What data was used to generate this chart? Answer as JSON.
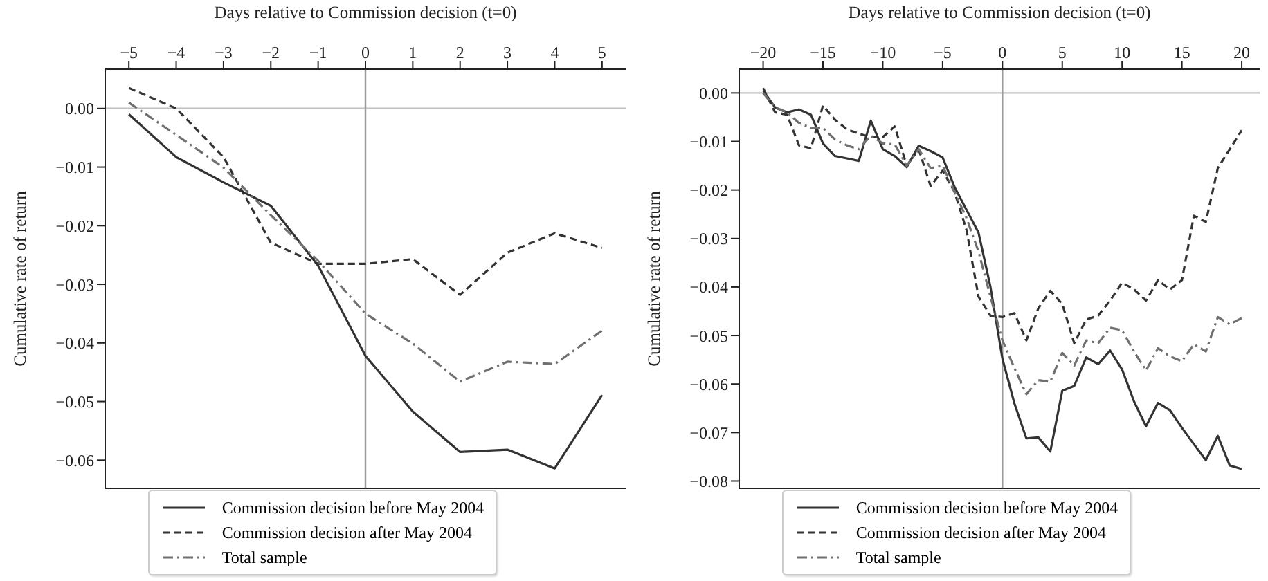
{
  "chart_data": [
    {
      "type": "line",
      "xlabel": "Days relative to Commission decision (t=0)",
      "ylabel": "Cumulative rate of return",
      "x": [
        -5,
        -4,
        -3,
        -2,
        -1,
        0,
        1,
        2,
        3,
        4,
        5
      ],
      "series": [
        {
          "name": "Commission decision before May 2004",
          "color": "#333333",
          "line_style": "solid",
          "values": [
            -0.001,
            -0.0083,
            -0.0126,
            -0.0166,
            -0.0268,
            -0.0422,
            -0.0517,
            -0.0586,
            -0.0582,
            -0.0614,
            -0.0489
          ]
        },
        {
          "name": "Commission decision after May 2004",
          "color": "#333333",
          "line_style": "dashed",
          "values": [
            0.0035,
            0.0,
            -0.0083,
            -0.0229,
            -0.0265,
            -0.0265,
            -0.0257,
            -0.0318,
            -0.0246,
            -0.0213,
            -0.0238
          ]
        },
        {
          "name": "Total sample",
          "color": "#707070",
          "line_style": "dashdot",
          "values": [
            0.001,
            -0.0045,
            -0.0101,
            -0.0182,
            -0.026,
            -0.035,
            -0.0401,
            -0.0466,
            -0.0432,
            -0.0436,
            -0.0379
          ]
        }
      ],
      "xlim": [
        -5.5,
        5.5
      ],
      "xticks": [
        {
          "value": -5,
          "label": "−5"
        },
        {
          "value": -4,
          "label": "−4"
        },
        {
          "value": -3,
          "label": "−3"
        },
        {
          "value": -2,
          "label": "−2"
        },
        {
          "value": -1,
          "label": "−1"
        },
        0,
        1,
        2,
        3,
        4,
        5
      ],
      "ylim": [
        -0.0648,
        0.0067
      ],
      "yticks": [
        {
          "value": 0,
          "label": "0.00"
        },
        {
          "value": -0.01,
          "label": "−0.01"
        },
        {
          "value": -0.02,
          "label": "−0.02"
        },
        {
          "value": -0.03,
          "label": "−0.03"
        },
        {
          "value": -0.04,
          "label": "−0.04"
        },
        {
          "value": -0.05,
          "label": "−0.05"
        },
        {
          "value": -0.06,
          "label": "−0.06"
        }
      ],
      "ref_lines": [
        {
          "axis": "y",
          "value": 0,
          "color": "#c0c0c0"
        },
        {
          "axis": "x",
          "value": 0,
          "color": "#999999"
        }
      ],
      "grid": false,
      "legend": "bottom"
    },
    {
      "type": "line",
      "xlabel": "Days relative to Commission decision (t=0)",
      "ylabel": "Cumulative rate of return",
      "x": [
        -20,
        -19,
        -18,
        -17,
        -16,
        -15,
        -14,
        -13,
        -12,
        -11,
        -10,
        -9,
        -8,
        -7,
        -6,
        -5,
        -4,
        -3,
        -2,
        -1,
        0,
        1,
        2,
        3,
        4,
        5,
        6,
        7,
        8,
        9,
        10,
        11,
        12,
        13,
        14,
        15,
        16,
        17,
        18,
        19,
        20
      ],
      "series": [
        {
          "name": "Commission decision before May 2004",
          "color": "#333333",
          "line_style": "solid",
          "values": [
            0.0005,
            -0.003,
            -0.004,
            -0.0034,
            -0.0045,
            -0.0104,
            -0.013,
            -0.0135,
            -0.014,
            -0.0057,
            -0.0116,
            -0.013,
            -0.0153,
            -0.0109,
            -0.012,
            -0.0133,
            -0.0194,
            -0.0241,
            -0.0288,
            -0.04,
            -0.0548,
            -0.064,
            -0.0712,
            -0.071,
            -0.0739,
            -0.0614,
            -0.0604,
            -0.0545,
            -0.0559,
            -0.0531,
            -0.057,
            -0.0636,
            -0.0687,
            -0.0639,
            -0.0654,
            -0.069,
            -0.0724,
            -0.0757,
            -0.0707,
            -0.0768,
            -0.0775
          ]
        },
        {
          "name": "Commission decision after May 2004",
          "color": "#333333",
          "line_style": "dashed",
          "values": [
            0.001,
            -0.004,
            -0.0045,
            -0.0108,
            -0.0114,
            -0.0026,
            -0.0055,
            -0.0075,
            -0.0084,
            -0.0091,
            -0.0091,
            -0.0069,
            -0.015,
            -0.0116,
            -0.0192,
            -0.016,
            -0.0204,
            -0.0283,
            -0.042,
            -0.0459,
            -0.0462,
            -0.0454,
            -0.051,
            -0.0444,
            -0.0408,
            -0.0435,
            -0.0516,
            -0.0467,
            -0.0459,
            -0.0428,
            -0.0391,
            -0.0405,
            -0.0428,
            -0.0386,
            -0.0405,
            -0.0386,
            -0.0253,
            -0.0266,
            -0.0155,
            -0.0116,
            -0.0077
          ]
        },
        {
          "name": "Total sample",
          "color": "#707070",
          "line_style": "dashdot",
          "values": [
            0.0,
            -0.003,
            -0.004,
            -0.0062,
            -0.0072,
            -0.0072,
            -0.0096,
            -0.0108,
            -0.0116,
            -0.0088,
            -0.0104,
            -0.0106,
            -0.015,
            -0.0116,
            -0.0155,
            -0.015,
            -0.0204,
            -0.0258,
            -0.0327,
            -0.042,
            -0.051,
            -0.0567,
            -0.0621,
            -0.0592,
            -0.0595,
            -0.0536,
            -0.0562,
            -0.051,
            -0.0516,
            -0.0484,
            -0.0489,
            -0.0533,
            -0.0572,
            -0.0526,
            -0.0543,
            -0.0553,
            -0.0518,
            -0.0533,
            -0.0462,
            -0.0477,
            -0.0464
          ]
        }
      ],
      "xlim": [
        -22,
        21.5
      ],
      "xticks": [
        {
          "value": -20,
          "label": "−20"
        },
        {
          "value": -15,
          "label": "−15"
        },
        {
          "value": -10,
          "label": "−10"
        },
        {
          "value": -5,
          "label": "−5"
        },
        0,
        5,
        10,
        15,
        20
      ],
      "ylim": [
        -0.0815,
        0.0049
      ],
      "yticks": [
        {
          "value": 0,
          "label": "0.00"
        },
        {
          "value": -0.01,
          "label": "−0.01"
        },
        {
          "value": -0.02,
          "label": "−0.02"
        },
        {
          "value": -0.03,
          "label": "−0.03"
        },
        {
          "value": -0.04,
          "label": "−0.04"
        },
        {
          "value": -0.05,
          "label": "−0.05"
        },
        {
          "value": -0.06,
          "label": "−0.06"
        },
        {
          "value": -0.07,
          "label": "−0.07"
        },
        {
          "value": -0.08,
          "label": "−0.08"
        }
      ],
      "ref_lines": [
        {
          "axis": "y",
          "value": 0,
          "color": "#c0c0c0"
        },
        {
          "axis": "x",
          "value": 0,
          "color": "#999999"
        }
      ],
      "grid": false,
      "legend": "bottom"
    }
  ]
}
